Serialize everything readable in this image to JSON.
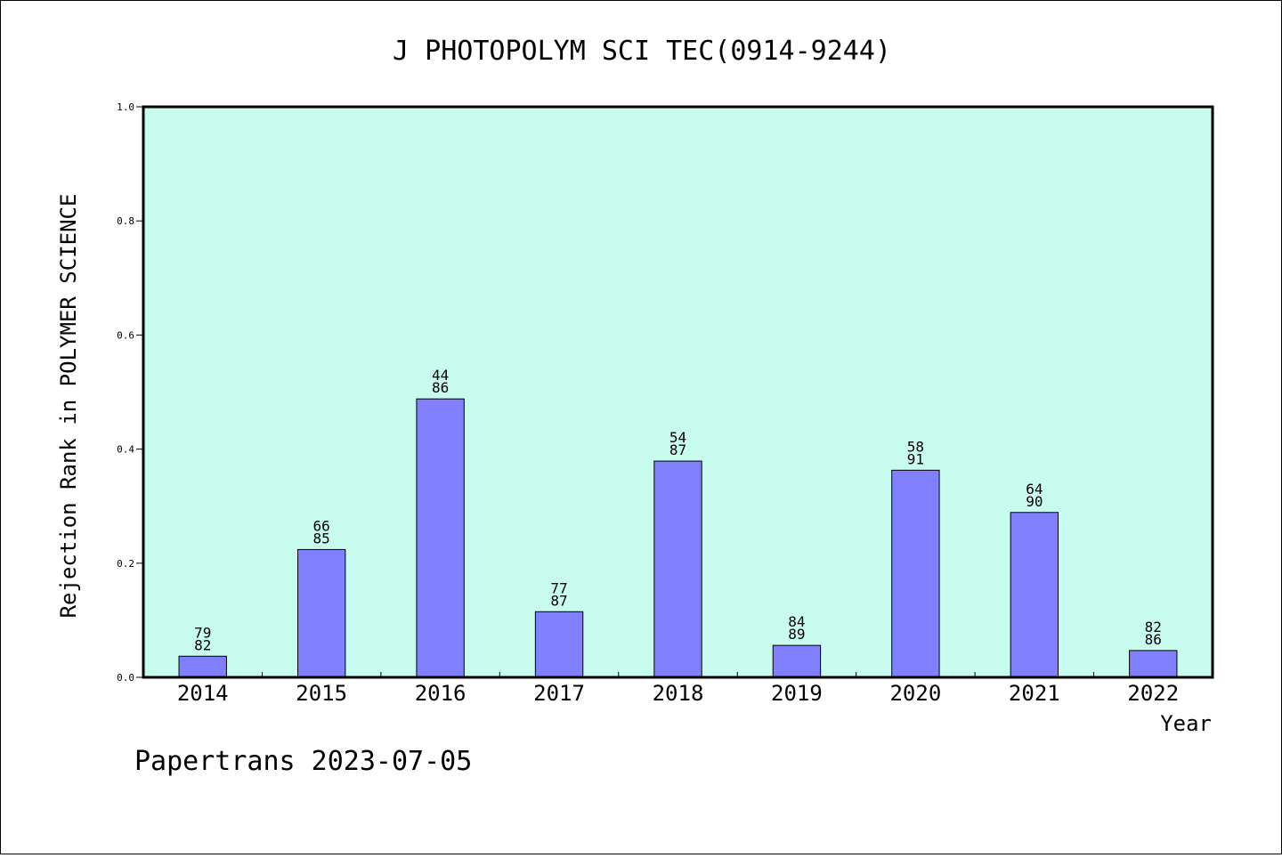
{
  "chart_data": {
    "type": "bar",
    "title": "J PHOTOPOLYM SCI TEC(0914-9244)",
    "xlabel": "Year",
    "ylabel": "Rejection Rank in POLYMER SCIENCE",
    "footer": "Papertrans 2023-07-05",
    "ylim": [
      0,
      1.0
    ],
    "yticks": [
      "0.0",
      "0.2",
      "0.4",
      "0.6",
      "0.8",
      "1.0"
    ],
    "categories": [
      "2014",
      "2015",
      "2016",
      "2017",
      "2018",
      "2019",
      "2020",
      "2021",
      "2022"
    ],
    "values": [
      0.037,
      0.224,
      0.488,
      0.115,
      0.379,
      0.056,
      0.363,
      0.289,
      0.047
    ],
    "labels_top": [
      "79",
      "66",
      "44",
      "77",
      "54",
      "84",
      "58",
      "64",
      "82"
    ],
    "labels_bottom": [
      "82",
      "85",
      "86",
      "87",
      "87",
      "89",
      "91",
      "90",
      "86"
    ],
    "colors": {
      "plot_background": "#c8fcee",
      "bar_fill": "#8080ff",
      "bar_stroke": "#000000"
    },
    "grid": false
  }
}
